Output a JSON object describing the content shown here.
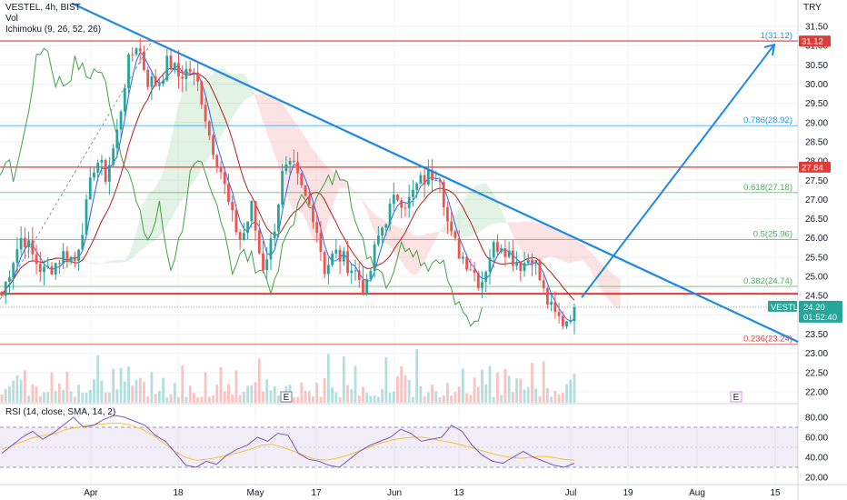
{
  "header": {
    "symbol_line": "VESTEL, 4h, BIST",
    "volume_label": "Vol",
    "ichimoku_label": "Ichimoku (9, 26, 52, 26)",
    "rsi_label": "RSI (14, close, SMA, 14, 2)",
    "currency": "TRY"
  },
  "colors": {
    "up": "#26a69a",
    "down": "#ef5350",
    "trend": "#1e88e5",
    "resistance": "#e53935",
    "rsi_line": "#7e57c2",
    "rsi_ma": "#fbc02d",
    "fib_green": "#4caf50",
    "fib_blue": "#2196f3",
    "fib_grey": "#787b86"
  },
  "price_tag": {
    "symbol": "VESTL",
    "price": "24.20",
    "countdown": "01:52:40"
  },
  "level_tags": {
    "top": "31.12",
    "mid": "27.84"
  },
  "markers": {
    "earnings_1": "E",
    "earnings_2": "E"
  },
  "chart_data": [
    {
      "type": "candlestick",
      "title": "VESTEL, 4h, BIST",
      "ylabel": "TRY",
      "ylim": [
        21.7,
        32.0
      ],
      "y_ticks": [
        "31.50",
        "31.00",
        "30.50",
        "30.00",
        "29.50",
        "29.00",
        "28.50",
        "28.00",
        "27.50",
        "27.00",
        "26.50",
        "26.00",
        "25.50",
        "25.00",
        "24.50",
        "24.00",
        "23.50",
        "23.00",
        "22.50",
        "22.00"
      ],
      "x_ticks": [
        "Apr",
        "18",
        "May",
        "17",
        "Jun",
        "13",
        "Jul",
        "19",
        "Aug",
        "15"
      ],
      "price_path": [
        24.5,
        25.4,
        26.1,
        25.5,
        25.1,
        25.3,
        25.6,
        25.4,
        26.6,
        28.1,
        27.6,
        28.6,
        30.4,
        31.12,
        30.1,
        30.0,
        30.6,
        30.2,
        30.4,
        29.9,
        28.6,
        27.8,
        26.6,
        25.9,
        26.8,
        25.2,
        26.0,
        27.7,
        27.8,
        27.1,
        26.6,
        25.2,
        25.6,
        25.4,
        25.1,
        24.6,
        25.9,
        26.6,
        27.1,
        26.9,
        27.4,
        27.6,
        27.8,
        26.1,
        25.6,
        25.3,
        24.8,
        25.7,
        25.9,
        25.5,
        25.3,
        25.6,
        24.6,
        24.0,
        23.8,
        24.2
      ],
      "fibonacci": [
        {
          "label": "1(31.12)",
          "value": 31.12
        },
        {
          "label": "0.786(28.92)",
          "value": 28.92
        },
        {
          "label": "0.618(27.18)",
          "value": 27.18
        },
        {
          "label": "0.5(25.96)",
          "value": 25.96
        },
        {
          "label": "0.382(24.74)",
          "value": 24.74
        },
        {
          "label": "0.236(23.24)",
          "value": 23.24
        }
      ],
      "horizontal_levels": [
        31.12,
        27.84,
        24.55
      ],
      "trendline": {
        "start": {
          "x_frac": 0.09,
          "y": 32.1
        },
        "end": {
          "x_frac": 1.0,
          "y": 23.3
        }
      },
      "projection": {
        "from": 24.45,
        "to": 31.12
      },
      "last_price": 24.2
    },
    {
      "type": "line",
      "title": "RSI (14, close, SMA, 14, 2)",
      "ylim": [
        17,
        88
      ],
      "y_ticks": [
        "80.00",
        "60.00",
        "40.00",
        "20.00"
      ],
      "bands": [
        70,
        30
      ],
      "rsi_path": [
        44,
        52,
        60,
        66,
        58,
        64,
        72,
        80,
        70,
        72,
        78,
        82,
        80,
        76,
        72,
        62,
        56,
        44,
        32,
        30,
        36,
        33,
        42,
        48,
        52,
        60,
        56,
        64,
        62,
        44,
        38,
        36,
        32,
        30,
        38,
        46,
        52,
        56,
        60,
        68,
        64,
        56,
        58,
        60,
        72,
        66,
        52,
        42,
        36,
        34,
        40,
        46,
        40,
        36,
        32,
        30,
        34
      ],
      "ma_path": [
        48,
        52,
        56,
        60,
        62,
        64,
        68,
        70,
        72,
        73,
        74,
        74,
        72,
        68,
        62,
        54,
        46,
        40,
        37,
        38,
        40,
        42,
        45,
        48,
        52,
        53,
        50,
        46,
        42,
        38,
        37,
        39,
        42,
        46,
        50,
        54,
        57,
        59,
        60,
        60,
        58,
        56,
        54,
        51,
        48,
        45,
        42,
        40,
        39,
        40,
        41,
        40,
        38,
        37
      ]
    }
  ]
}
